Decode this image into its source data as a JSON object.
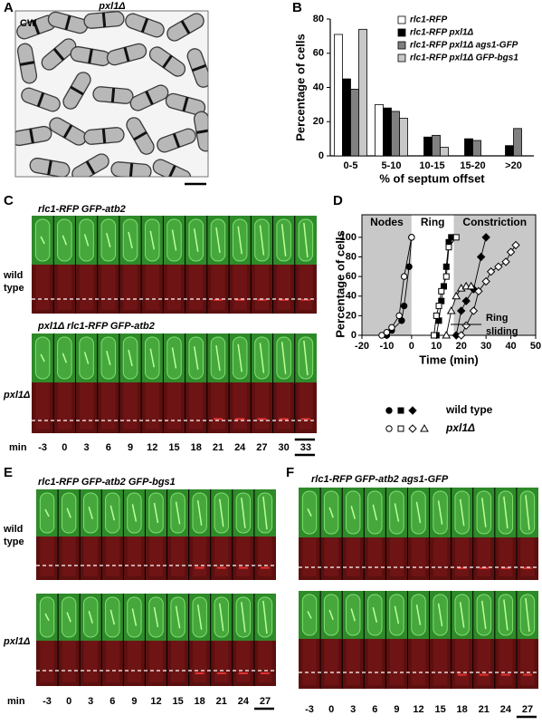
{
  "panels": {
    "A": {
      "letter": "A",
      "title": "pxl1Δ",
      "label": "CW"
    },
    "C": {
      "letter": "C",
      "title_top": "rlc1-RFP GFP-atb2",
      "title_bottom": "pxl1Δ rlc1-RFP GFP-atb2",
      "row_labels": [
        "wild type",
        "pxl1Δ"
      ],
      "unit": "min",
      "times": [
        -3,
        0,
        3,
        6,
        9,
        12,
        15,
        18,
        21,
        24,
        27,
        30,
        33
      ]
    },
    "E": {
      "letter": "E",
      "title": "rlc1-RFP GFP-atb2 GFP-bgs1",
      "row_labels": [
        "wild type",
        "pxl1Δ"
      ],
      "unit": "min",
      "times": [
        -3,
        0,
        3,
        6,
        9,
        12,
        15,
        18,
        21,
        24,
        27
      ]
    },
    "F": {
      "letter": "F",
      "title": "rlc1-RFP GFP-atb2 ags1-GFP",
      "times": [
        -3,
        0,
        3,
        6,
        9,
        12,
        15,
        18,
        21,
        24,
        27
      ]
    }
  },
  "chart_data": [
    {
      "type": "bar",
      "panel": "B",
      "xlabel": "% of septum offset",
      "ylabel": "Percentage of cells",
      "categories": [
        "0-5",
        "5-10",
        "10-15",
        "15-20",
        ">20"
      ],
      "series": [
        {
          "name": "rlc1-RFP",
          "color": "#ffffff",
          "values": [
            71,
            30,
            0,
            0,
            0
          ]
        },
        {
          "name": "rlc1-RFP pxl1Δ",
          "color": "#000000",
          "values": [
            45,
            28,
            11,
            10,
            6
          ]
        },
        {
          "name": "rlc1-RFP pxl1Δ ags1-GFP",
          "color": "#808080",
          "values": [
            39,
            26,
            12,
            9,
            16
          ]
        },
        {
          "name": "rlc1-RFP pxl1Δ GFP-bgs1",
          "color": "#c8c8c8",
          "values": [
            74,
            22,
            5,
            0,
            0
          ]
        }
      ],
      "ylim": [
        0,
        80
      ],
      "yticks": [
        0,
        20,
        40,
        60,
        80
      ],
      "legend": "upper right"
    },
    {
      "type": "line",
      "panel": "D",
      "xlabel": "Time (min)",
      "ylabel": "Percentage of cells",
      "xlim": [
        -20,
        50
      ],
      "xticks": [
        -20,
        -10,
        0,
        10,
        20,
        30,
        40,
        50
      ],
      "ylim": [
        0,
        123
      ],
      "yticks": [
        0,
        20,
        40,
        60,
        80,
        100
      ],
      "regions": [
        {
          "label": "Nodes",
          "from": -20,
          "to": 0,
          "shaded": true
        },
        {
          "label": "Ring",
          "from": 0,
          "to": 17,
          "shaded": false
        },
        {
          "label": "Constriction",
          "from": 17,
          "to": 50,
          "shaded": true
        }
      ],
      "annotation": "Ring sliding",
      "series": [
        {
          "marker": "circle",
          "filled": true,
          "x": [
            -10,
            -8,
            -4,
            -3,
            -1,
            0
          ],
          "values": [
            0,
            5,
            15,
            30,
            70,
            100
          ]
        },
        {
          "marker": "circle",
          "filled": false,
          "x": [
            -12,
            -10,
            -8,
            -5,
            -3,
            0
          ],
          "values": [
            0,
            3,
            8,
            20,
            60,
            100
          ]
        },
        {
          "marker": "square",
          "filled": true,
          "x": [
            10,
            11,
            12,
            13,
            14,
            15,
            16
          ],
          "values": [
            0,
            15,
            35,
            50,
            70,
            95,
            100
          ]
        },
        {
          "marker": "square",
          "filled": false,
          "x": [
            9,
            10,
            11,
            12,
            14,
            15,
            18
          ],
          "values": [
            0,
            20,
            30,
            45,
            60,
            90,
            100
          ]
        },
        {
          "marker": "diamond",
          "filled": true,
          "x": [
            18,
            20,
            22,
            25,
            28,
            30
          ],
          "values": [
            0,
            25,
            35,
            47,
            80,
            100
          ]
        },
        {
          "marker": "triangle",
          "filled": false,
          "x": [
            14,
            16,
            18,
            20,
            22,
            24
          ],
          "values": [
            0,
            25,
            40,
            48,
            50,
            50
          ]
        },
        {
          "marker": "diamond",
          "filled": false,
          "x": [
            20,
            22,
            25,
            27,
            30,
            32,
            35,
            38,
            40,
            42
          ],
          "values": [
            0,
            10,
            25,
            45,
            55,
            65,
            70,
            75,
            85,
            92
          ]
        }
      ],
      "legend": [
        {
          "label": "wild type",
          "markers": [
            "circle",
            "square",
            "diamond"
          ],
          "filled": true
        },
        {
          "label": "pxl1Δ",
          "markers": [
            "circle",
            "square",
            "diamond",
            "triangle"
          ],
          "filled": false
        }
      ]
    }
  ]
}
